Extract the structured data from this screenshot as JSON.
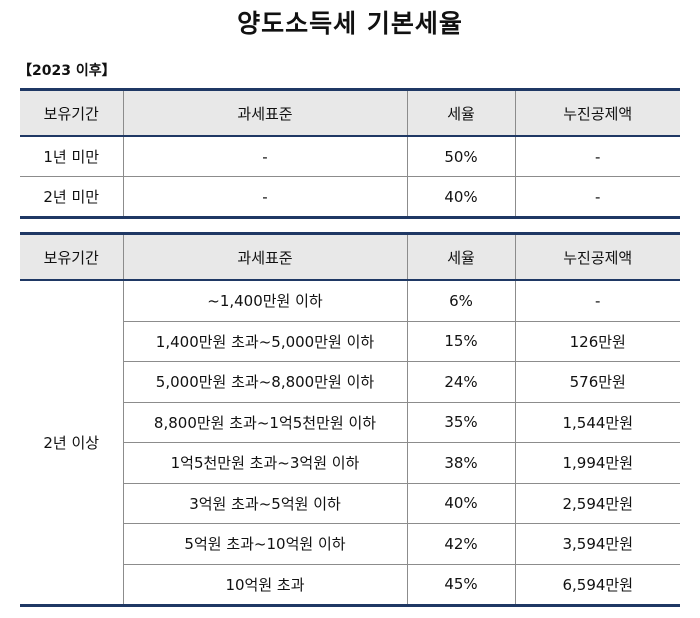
{
  "title": "양도소득세 기본세율",
  "subtitle": "【2023 이후】",
  "headers": [
    "보유기간",
    "과세표준",
    "세율",
    "누진공제액"
  ],
  "short_term_rows": [
    {
      "period": "1년 미만",
      "base": "-",
      "rate": "50%",
      "deduction": "-"
    },
    {
      "period": "2년 미만",
      "base": "-",
      "rate": "40%",
      "deduction": "-"
    }
  ],
  "long_term": {
    "period": "2년 이상",
    "rows": [
      {
        "base": "~1,400만원 이하",
        "rate": "6%",
        "deduction": "-"
      },
      {
        "base": "1,400만원 초과~5,000만원 이하",
        "rate": "15%",
        "deduction": "126만원"
      },
      {
        "base": "5,000만원 초과~8,800만원 이하",
        "rate": "24%",
        "deduction": "576만원"
      },
      {
        "base": "8,800만원 초과~1억5천만원 이하",
        "rate": "35%",
        "deduction": "1,544만원"
      },
      {
        "base": "1억5천만원 초과~3억원 이하",
        "rate": "38%",
        "deduction": "1,994만원"
      },
      {
        "base": "3억원 초과~5억원 이하",
        "rate": "40%",
        "deduction": "2,594만원"
      },
      {
        "base": "5억원 초과~10억원 이하",
        "rate": "42%",
        "deduction": "3,594만원"
      },
      {
        "base": "10억원 초과",
        "rate": "45%",
        "deduction": "6,594만원"
      }
    ]
  },
  "colors": {
    "header_bg": "#e8e8e8",
    "rule": "#1f3864",
    "grid": "#8c8c8c"
  }
}
